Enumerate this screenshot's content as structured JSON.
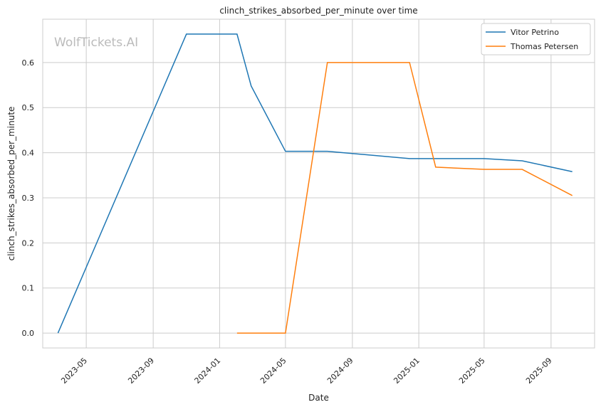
{
  "chart_data": {
    "type": "line",
    "title": "clinch_strikes_absorbed_per_minute over time",
    "xlabel": "Date",
    "ylabel": "clinch_strikes_absorbed_per_minute",
    "watermark": "WolfTickets.AI",
    "x_ticks": [
      "2023-05",
      "2023-09",
      "2024-01",
      "2024-05",
      "2024-09",
      "2025-01",
      "2025-05",
      "2025-09"
    ],
    "y_ticks": [
      0.0,
      0.1,
      0.2,
      0.3,
      0.4,
      0.5,
      0.6
    ],
    "xlim": [
      "2023-02-10",
      "2025-11-20"
    ],
    "ylim": [
      -0.033,
      0.696
    ],
    "grid": true,
    "legend_position": "top-right",
    "series": [
      {
        "name": "Vitor Petrino",
        "color": "#1f77b4",
        "points": [
          [
            "2023-03-10",
            0.0
          ],
          [
            "2023-11-01",
            0.663
          ],
          [
            "2024-02-02",
            0.663
          ],
          [
            "2024-02-28",
            0.548
          ],
          [
            "2024-05-01",
            0.403
          ],
          [
            "2024-07-17",
            0.403
          ],
          [
            "2024-12-15",
            0.387
          ],
          [
            "2025-05-01",
            0.387
          ],
          [
            "2025-07-10",
            0.382
          ],
          [
            "2025-10-10",
            0.358
          ]
        ]
      },
      {
        "name": "Thomas Petersen",
        "color": "#ff7f0e",
        "points": [
          [
            "2024-02-02",
            0.0
          ],
          [
            "2024-05-01",
            0.0
          ],
          [
            "2024-07-17",
            0.6
          ],
          [
            "2024-12-15",
            0.6
          ],
          [
            "2025-02-01",
            0.368
          ],
          [
            "2025-05-01",
            0.363
          ],
          [
            "2025-07-10",
            0.363
          ],
          [
            "2025-10-10",
            0.305
          ]
        ]
      }
    ]
  }
}
